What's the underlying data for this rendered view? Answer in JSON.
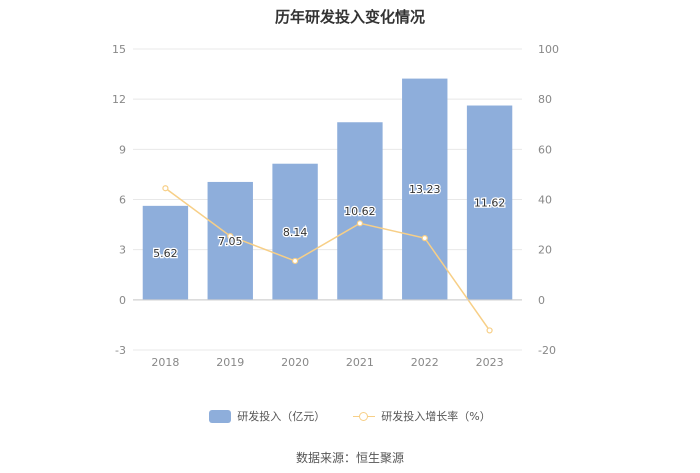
{
  "title": "历年研发投入变化情况",
  "source": "数据来源：恒生聚源",
  "chart_data": {
    "type": "bar",
    "title": "历年研发投入变化情况",
    "categories": [
      "2018",
      "2019",
      "2020",
      "2021",
      "2022",
      "2023"
    ],
    "series": [
      {
        "name": "研发投入（亿元）",
        "type": "bar",
        "axis": "left",
        "values": [
          5.62,
          7.05,
          8.14,
          10.62,
          13.23,
          11.62
        ],
        "labels": [
          "5.62",
          "7.05",
          "8.14",
          "10.62",
          "13.23",
          "11.62"
        ],
        "color": "#8eaedb"
      },
      {
        "name": "研发投入增长率（%）",
        "type": "line",
        "axis": "right",
        "values": [
          44.5,
          25.4,
          15.5,
          30.5,
          24.6,
          -12.2
        ],
        "color": "#f7cf87"
      }
    ],
    "y_left": {
      "min": -3,
      "max": 15,
      "ticks": [
        "-3",
        "0",
        "3",
        "6",
        "9",
        "12",
        "15"
      ]
    },
    "y_right": {
      "min": -20,
      "max": 100,
      "ticks": [
        "-20",
        "0",
        "20",
        "40",
        "60",
        "80",
        "100"
      ]
    },
    "grid": true,
    "legend": "bottom"
  }
}
